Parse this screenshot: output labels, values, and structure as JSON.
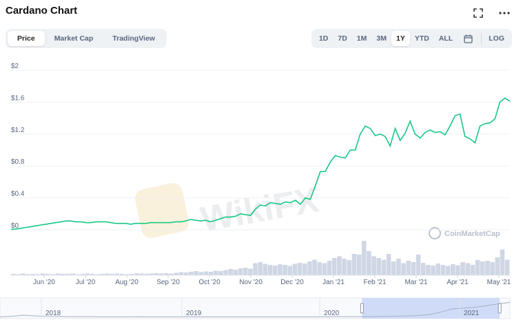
{
  "header": {
    "title": "Cardano Chart",
    "icons": [
      "fullscreen-icon",
      "more-icon"
    ]
  },
  "view_tabs": [
    {
      "label": "Price",
      "active": true
    },
    {
      "label": "Market Cap",
      "active": false
    },
    {
      "label": "TradingView",
      "active": false
    }
  ],
  "ranges": [
    {
      "label": "1D",
      "active": false
    },
    {
      "label": "7D",
      "active": false
    },
    {
      "label": "1M",
      "active": false
    },
    {
      "label": "3M",
      "active": false
    },
    {
      "label": "1Y",
      "active": true
    },
    {
      "label": "YTD",
      "active": false
    },
    {
      "label": "ALL",
      "active": false
    }
  ],
  "log_label": "LOG",
  "watermark": {
    "wikifx": "WikiFX",
    "cmc": "CoinMarketCap"
  },
  "colors": {
    "line": "#16c784",
    "volume": "#cfd6e4",
    "navigator_fill": "#c9d6f6",
    "accent": "#3861fb"
  },
  "chart_data": {
    "type": "line",
    "y_ticks": [
      "$2",
      "$1.6",
      "$1.2",
      "$0.8",
      "$0.4",
      "$0"
    ],
    "ylim": [
      0,
      2
    ],
    "x_ticks": [
      "Jun '20",
      "Jul '20",
      "Aug '20",
      "Sep '20",
      "Oct '20",
      "Nov '20",
      "Dec '20",
      "Jan '21",
      "Feb '21",
      "Mar '21",
      "Apr '21",
      "May '21"
    ],
    "series": [
      {
        "values": [
          0.005,
          0.01,
          0.02,
          0.03,
          0.04,
          0.05,
          0.06,
          0.07,
          0.08,
          0.09,
          0.1,
          0.11,
          0.11,
          0.1,
          0.1,
          0.09,
          0.09,
          0.1,
          0.1,
          0.1,
          0.09,
          0.08,
          0.08,
          0.08,
          0.07,
          0.08,
          0.08,
          0.08,
          0.09,
          0.09,
          0.09,
          0.09,
          0.09,
          0.1,
          0.1,
          0.11,
          0.13,
          0.12,
          0.11,
          0.12,
          0.1,
          0.12,
          0.14,
          0.16,
          0.16,
          0.17,
          0.2,
          0.19,
          0.18,
          0.26,
          0.31,
          0.3,
          0.34,
          0.33,
          0.32,
          0.35,
          0.34,
          0.37,
          0.32,
          0.4,
          0.38,
          0.55,
          0.73,
          0.73,
          0.85,
          0.93,
          0.91,
          0.9,
          1.0,
          1.0,
          1.2,
          1.3,
          1.27,
          1.18,
          1.2,
          1.17,
          1.05,
          1.27,
          1.12,
          1.21,
          1.36,
          1.2,
          1.15,
          1.22,
          1.25,
          1.22,
          1.23,
          1.19,
          1.3,
          1.43,
          1.45,
          1.17,
          1.14,
          1.09,
          1.3,
          1.33,
          1.34,
          1.39,
          1.6,
          1.65,
          1.61
        ]
      }
    ],
    "volume": [
      0.04,
      0.03,
      0.05,
      0.03,
      0.04,
      0.03,
      0.05,
      0.04,
      0.03,
      0.05,
      0.04,
      0.04,
      0.05,
      0.03,
      0.04,
      0.05,
      0.04,
      0.03,
      0.04,
      0.05,
      0.04,
      0.05,
      0.04,
      0.03,
      0.04,
      0.06,
      0.05,
      0.04,
      0.05,
      0.06,
      0.05,
      0.06,
      0.05,
      0.07,
      0.09,
      0.08,
      0.1,
      0.12,
      0.09,
      0.11,
      0.1,
      0.13,
      0.12,
      0.15,
      0.18,
      0.16,
      0.2,
      0.22,
      0.19,
      0.35,
      0.38,
      0.33,
      0.3,
      0.28,
      0.32,
      0.3,
      0.27,
      0.33,
      0.36,
      0.34,
      0.4,
      0.45,
      0.38,
      0.35,
      0.42,
      0.5,
      0.55,
      0.48,
      0.44,
      0.62,
      0.6,
      1.0,
      0.7,
      0.55,
      0.5,
      0.45,
      0.62,
      0.4,
      0.48,
      0.35,
      0.42,
      0.38,
      0.6,
      0.36,
      0.3,
      0.28,
      0.34,
      0.3,
      0.27,
      0.32,
      0.29,
      0.38,
      0.35,
      0.3,
      0.44,
      0.4,
      0.42,
      0.38,
      0.52,
      0.75,
      0.45
    ],
    "navigator": {
      "labels": [
        "2018",
        "2019",
        "2020",
        "2021"
      ],
      "line": [
        0.02,
        0.05,
        0.12,
        0.08,
        0.05,
        0.04,
        0.03,
        0.03,
        0.03,
        0.02,
        0.02,
        0.02,
        0.03,
        0.02,
        0.02,
        0.02,
        0.02,
        0.02,
        0.02,
        0.02,
        0.02,
        0.02,
        0.02,
        0.02,
        0.02,
        0.02,
        0.02,
        0.02,
        0.02,
        0.03,
        0.03,
        0.03,
        0.03,
        0.04,
        0.05,
        0.07,
        0.1,
        0.15,
        0.3,
        0.5,
        0.55,
        0.6,
        0.7,
        0.8,
        0.9
      ],
      "selection": [
        0.71,
        0.98
      ]
    },
    "grid": true
  }
}
